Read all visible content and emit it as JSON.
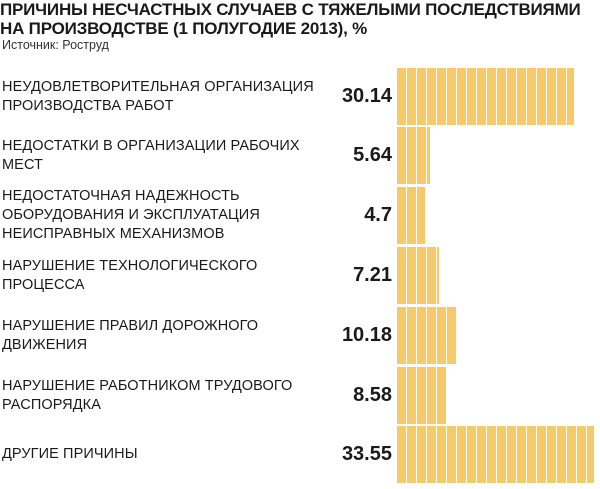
{
  "chart_data": {
    "type": "bar",
    "orientation": "horizontal",
    "title": "ПРИЧИНЫ НЕСЧАСТНЫХ СЛУЧАЕВ С ТЯЖЕЛЫМИ ПОСЛЕДСТВИЯМИ\nНА ПРОИЗВОДСТВЕ (1 ПОЛУГОДИЕ 2013), %",
    "source": "Источник: Роструд",
    "categories": [
      "НЕУДОВЛЕТВОРИТЕЛЬНАЯ ОРГАНИЗАЦИЯ ПРОИЗВОДСТВА РАБОТ",
      "НЕДОСТАТКИ В ОРГАНИЗАЦИИ РАБОЧИХ МЕСТ",
      "НЕДОСТАТОЧНАЯ НАДЕЖНОСТЬ ОБОРУДОВАНИЯ И ЭКСПЛУАТАЦИЯ НЕИСПРАВНЫХ МЕХАНИЗМОВ",
      "НАРУШЕНИЕ ТЕХНОЛОГИЧЕСКОГО ПРОЦЕССА",
      "НАРУШЕНИЕ ПРАВИЛ ДОРОЖНОГО ДВИЖЕНИЯ",
      "НАРУШЕНИЕ РАБОТНИКОМ ТРУДОВОГО РАСПОРЯДКА",
      "ДРУГИЕ ПРИЧИНЫ"
    ],
    "values": [
      30.14,
      5.64,
      4.7,
      7.21,
      10.18,
      8.58,
      33.55
    ],
    "value_labels": [
      "30.14",
      "5.64",
      "4.7",
      "7.21",
      "10.18",
      "8.58",
      "33.55"
    ],
    "xlim": [
      0,
      35
    ],
    "grid": false,
    "legend": "none",
    "colors": {
      "bar": "#f6c96a",
      "text": "#1a1a1a"
    }
  }
}
